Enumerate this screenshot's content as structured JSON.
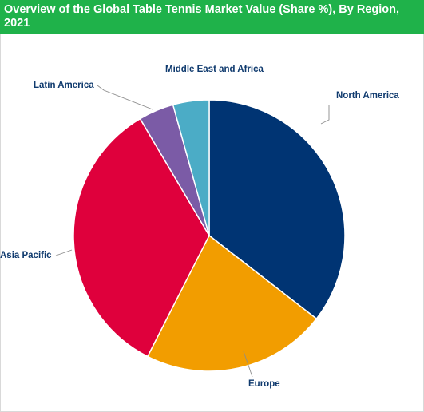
{
  "title": "Overview of the Global Table Tennis Market Value (Share %), By Region, 2021",
  "chart_data": {
    "type": "pie",
    "title": "Overview of the Global Table Tennis Market Value (Share %), By Region, 2021",
    "slices": [
      {
        "label": "North America",
        "value": 35.5,
        "color": "#003473"
      },
      {
        "label": "Europe",
        "value": 22.0,
        "color": "#f29d00"
      },
      {
        "label": "Asia Pacific",
        "value": 34.0,
        "color": "#df003c"
      },
      {
        "label": "Latin America",
        "value": 4.2,
        "color": "#7b5ba6"
      },
      {
        "label": "Middle East and Africa",
        "value": 4.3,
        "color": "#4bacc6"
      }
    ],
    "legend": "none",
    "start_angle_deg": 0,
    "direction": "clockwise"
  }
}
